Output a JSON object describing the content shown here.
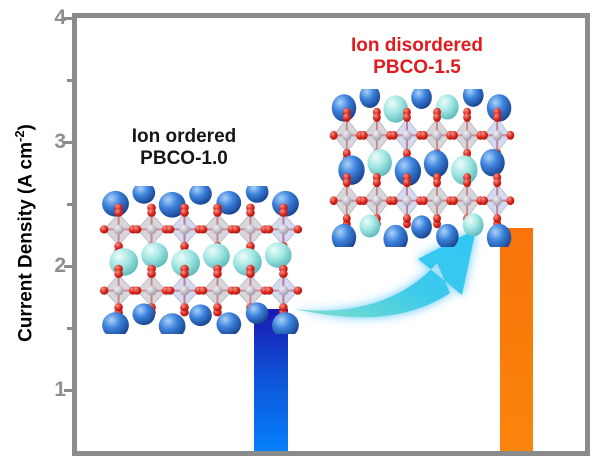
{
  "figure": {
    "y_axis": {
      "title_main": "Current Density (A cm",
      "title_sup": "-2",
      "title_close": ")",
      "tick_labels": [
        "4",
        "3",
        "2",
        "1"
      ]
    },
    "annotations": {
      "ordered": {
        "line1": "Ion ordered",
        "line2": "PBCO-1.0"
      },
      "disordered": {
        "line1": "Ion disordered",
        "line2": "PBCO-1.5"
      }
    }
  },
  "chart_data": {
    "type": "bar",
    "categories": [
      "Ion ordered PBCO-1.0",
      "Ion disordered PBCO-1.5"
    ],
    "values": [
      1.65,
      2.3
    ],
    "title": "",
    "xlabel": "",
    "ylabel": "Current Density (A cm⁻²)",
    "ylim": [
      0.5,
      4
    ],
    "yticks_major": [
      4,
      3,
      2,
      1
    ],
    "yticks_minor": [
      3.5,
      2.5,
      1.5
    ],
    "x_tick_labels": [],
    "grid": false,
    "legend": "none",
    "annotations": [
      {
        "text": "Ion ordered PBCO-1.0",
        "color": "#161616",
        "position": "above-left-bar"
      },
      {
        "text": "Ion disordered PBCO-1.5",
        "color": "#e11b1e",
        "position": "above-right-bar"
      }
    ]
  },
  "colors": {
    "frame": "#8b8b8b",
    "tick_label": "#8f8f8f",
    "ordered_label": "#161616",
    "disordered_label": "#e11b1e",
    "bar_gradients": [
      [
        "#1b18b0",
        "#0d55d8",
        "#0680fa"
      ],
      [
        "#f9730a",
        "#f97c0b",
        "#fa850d"
      ]
    ],
    "arrow_tail": "#7de0c8",
    "arrow_mid": "#3cc9ec",
    "arrow_head": "#2fc7f6",
    "sphere_blue": "#2e6fd0",
    "sphere_cyan": "#9fe6e2",
    "atom_red": "#d8251b",
    "atom_gray": "#c0bcc8",
    "octahedra_gray": "#aaa4b0"
  }
}
